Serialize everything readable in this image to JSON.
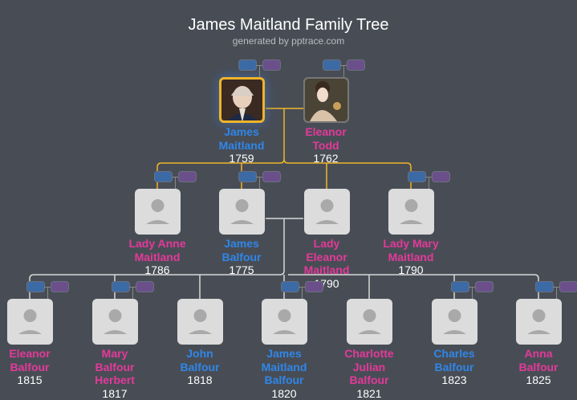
{
  "title": "James Maitland Family Tree",
  "subtitle": "generated by pptrace.com",
  "colors": {
    "male": "#2f86e8",
    "female": "#e4399a",
    "selected": "#f0b429",
    "background": "#484d55"
  },
  "generations": [
    [
      {
        "name": "James Maitland",
        "lines": [
          "James",
          "Maitland"
        ],
        "year": "1759",
        "sex": "m",
        "photo": "man-portrait",
        "selected": true,
        "pills": true
      },
      {
        "name": "Eleanor Todd",
        "lines": [
          "Eleanor",
          "Todd"
        ],
        "year": "1762",
        "sex": "f",
        "photo": "woman-portrait",
        "pills": true
      }
    ],
    [
      {
        "lines": [
          "Lady Anne",
          "Maitland"
        ],
        "year": "1786",
        "sex": "f",
        "pills": true
      },
      {
        "lines": [
          "James",
          "Balfour"
        ],
        "year": "1775",
        "sex": "m",
        "pills": true
      },
      {
        "lines": [
          "Lady",
          "Eleanor",
          "Maitland"
        ],
        "year": "1790",
        "sex": "f",
        "pills": false
      },
      {
        "lines": [
          "Lady Mary",
          "Maitland"
        ],
        "year": "1790",
        "sex": "f",
        "pills": true
      }
    ],
    [
      {
        "lines": [
          "Eleanor",
          "Balfour"
        ],
        "year": "1815",
        "sex": "f",
        "pills": true
      },
      {
        "lines": [
          "Mary",
          "Balfour",
          "Herbert"
        ],
        "year": "1817",
        "sex": "f",
        "pills": true
      },
      {
        "lines": [
          "John",
          "Balfour"
        ],
        "year": "1818",
        "sex": "m",
        "pills": false
      },
      {
        "lines": [
          "James",
          "Maitland",
          "Balfour"
        ],
        "year": "1820",
        "sex": "m",
        "pills": true
      },
      {
        "lines": [
          "Charlotte",
          "Julian",
          "Balfour"
        ],
        "year": "1821",
        "sex": "f",
        "pills": false
      },
      {
        "lines": [
          "Charles",
          "Balfour"
        ],
        "year": "1823",
        "sex": "m",
        "pills": true
      },
      {
        "lines": [
          "Anna",
          "Balfour"
        ],
        "year": "1825",
        "sex": "f",
        "pills": true
      }
    ]
  ]
}
